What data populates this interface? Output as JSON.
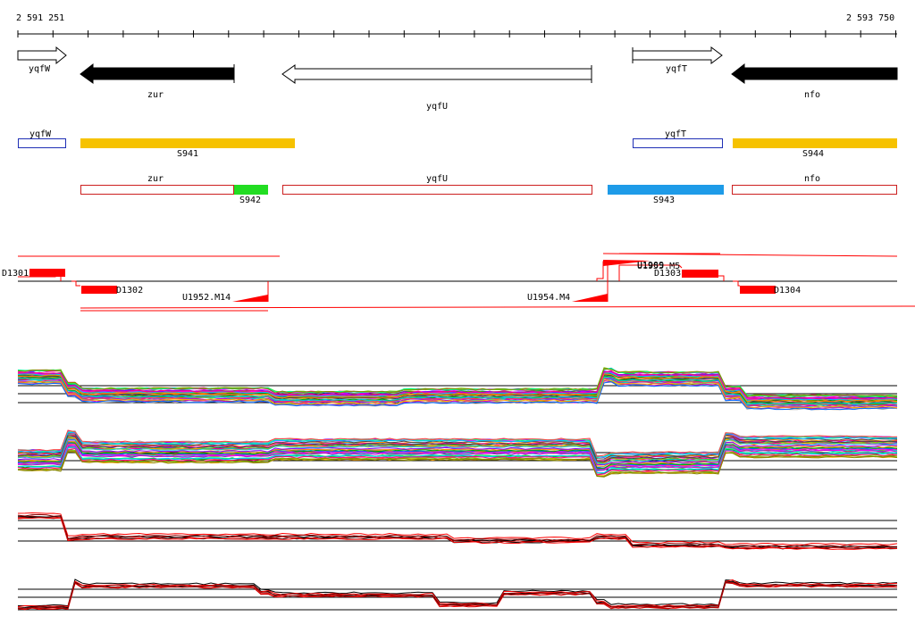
{
  "ruler": {
    "start_label": "2 591 251",
    "end_label": "2 593 750"
  },
  "genes": [
    {
      "name": "yqfW",
      "strand": "+",
      "filled": false,
      "label": "yqfW"
    },
    {
      "name": "zur",
      "strand": "-",
      "filled": true,
      "label": "zur"
    },
    {
      "name": "yqfU",
      "strand": "-",
      "filled": false,
      "label": "yqfU"
    },
    {
      "name": "yqfT",
      "strand": "+",
      "filled": false,
      "label": "yqfT"
    },
    {
      "name": "nfo",
      "strand": "-",
      "filled": true,
      "label": "nfo"
    }
  ],
  "segments_top": [
    {
      "label": "yqfW",
      "kind": "gene-box",
      "color": "#1f2fb5"
    },
    {
      "label": "S941",
      "kind": "segment",
      "color": "#f6c200"
    },
    {
      "label": "yqfT",
      "kind": "gene-box",
      "color": "#1f2fb5"
    },
    {
      "label": "S944",
      "kind": "segment",
      "color": "#f6c200"
    }
  ],
  "segments_bottom": [
    {
      "label": "zur",
      "kind": "gene-box",
      "color": "#cc1f1f"
    },
    {
      "label": "S942",
      "kind": "segment",
      "color": "#22dd22"
    },
    {
      "label": "yqfU",
      "kind": "gene-box",
      "color": "#cc1f1f"
    },
    {
      "label": "S943",
      "kind": "segment",
      "color": "#1e9be8"
    },
    {
      "label": "nfo",
      "kind": "gene-box",
      "color": "#cc1f1f"
    }
  ],
  "features": [
    {
      "label": "D1301"
    },
    {
      "label": "D1302"
    },
    {
      "label": "U1952.M14"
    },
    {
      "label": "U1954.M4"
    },
    {
      "label": "U1955.M5"
    },
    {
      "label": "U1909"
    },
    {
      "label": "D1303"
    },
    {
      "label": "D1304"
    }
  ],
  "colors": {
    "accent_red": "#ff0000",
    "axis": "#000000",
    "background": "#ffffff"
  },
  "tracks": [
    {
      "name": "expression-profiles-1"
    },
    {
      "name": "expression-profiles-2"
    },
    {
      "name": "expression-profiles-3"
    },
    {
      "name": "expression-profiles-4"
    }
  ]
}
